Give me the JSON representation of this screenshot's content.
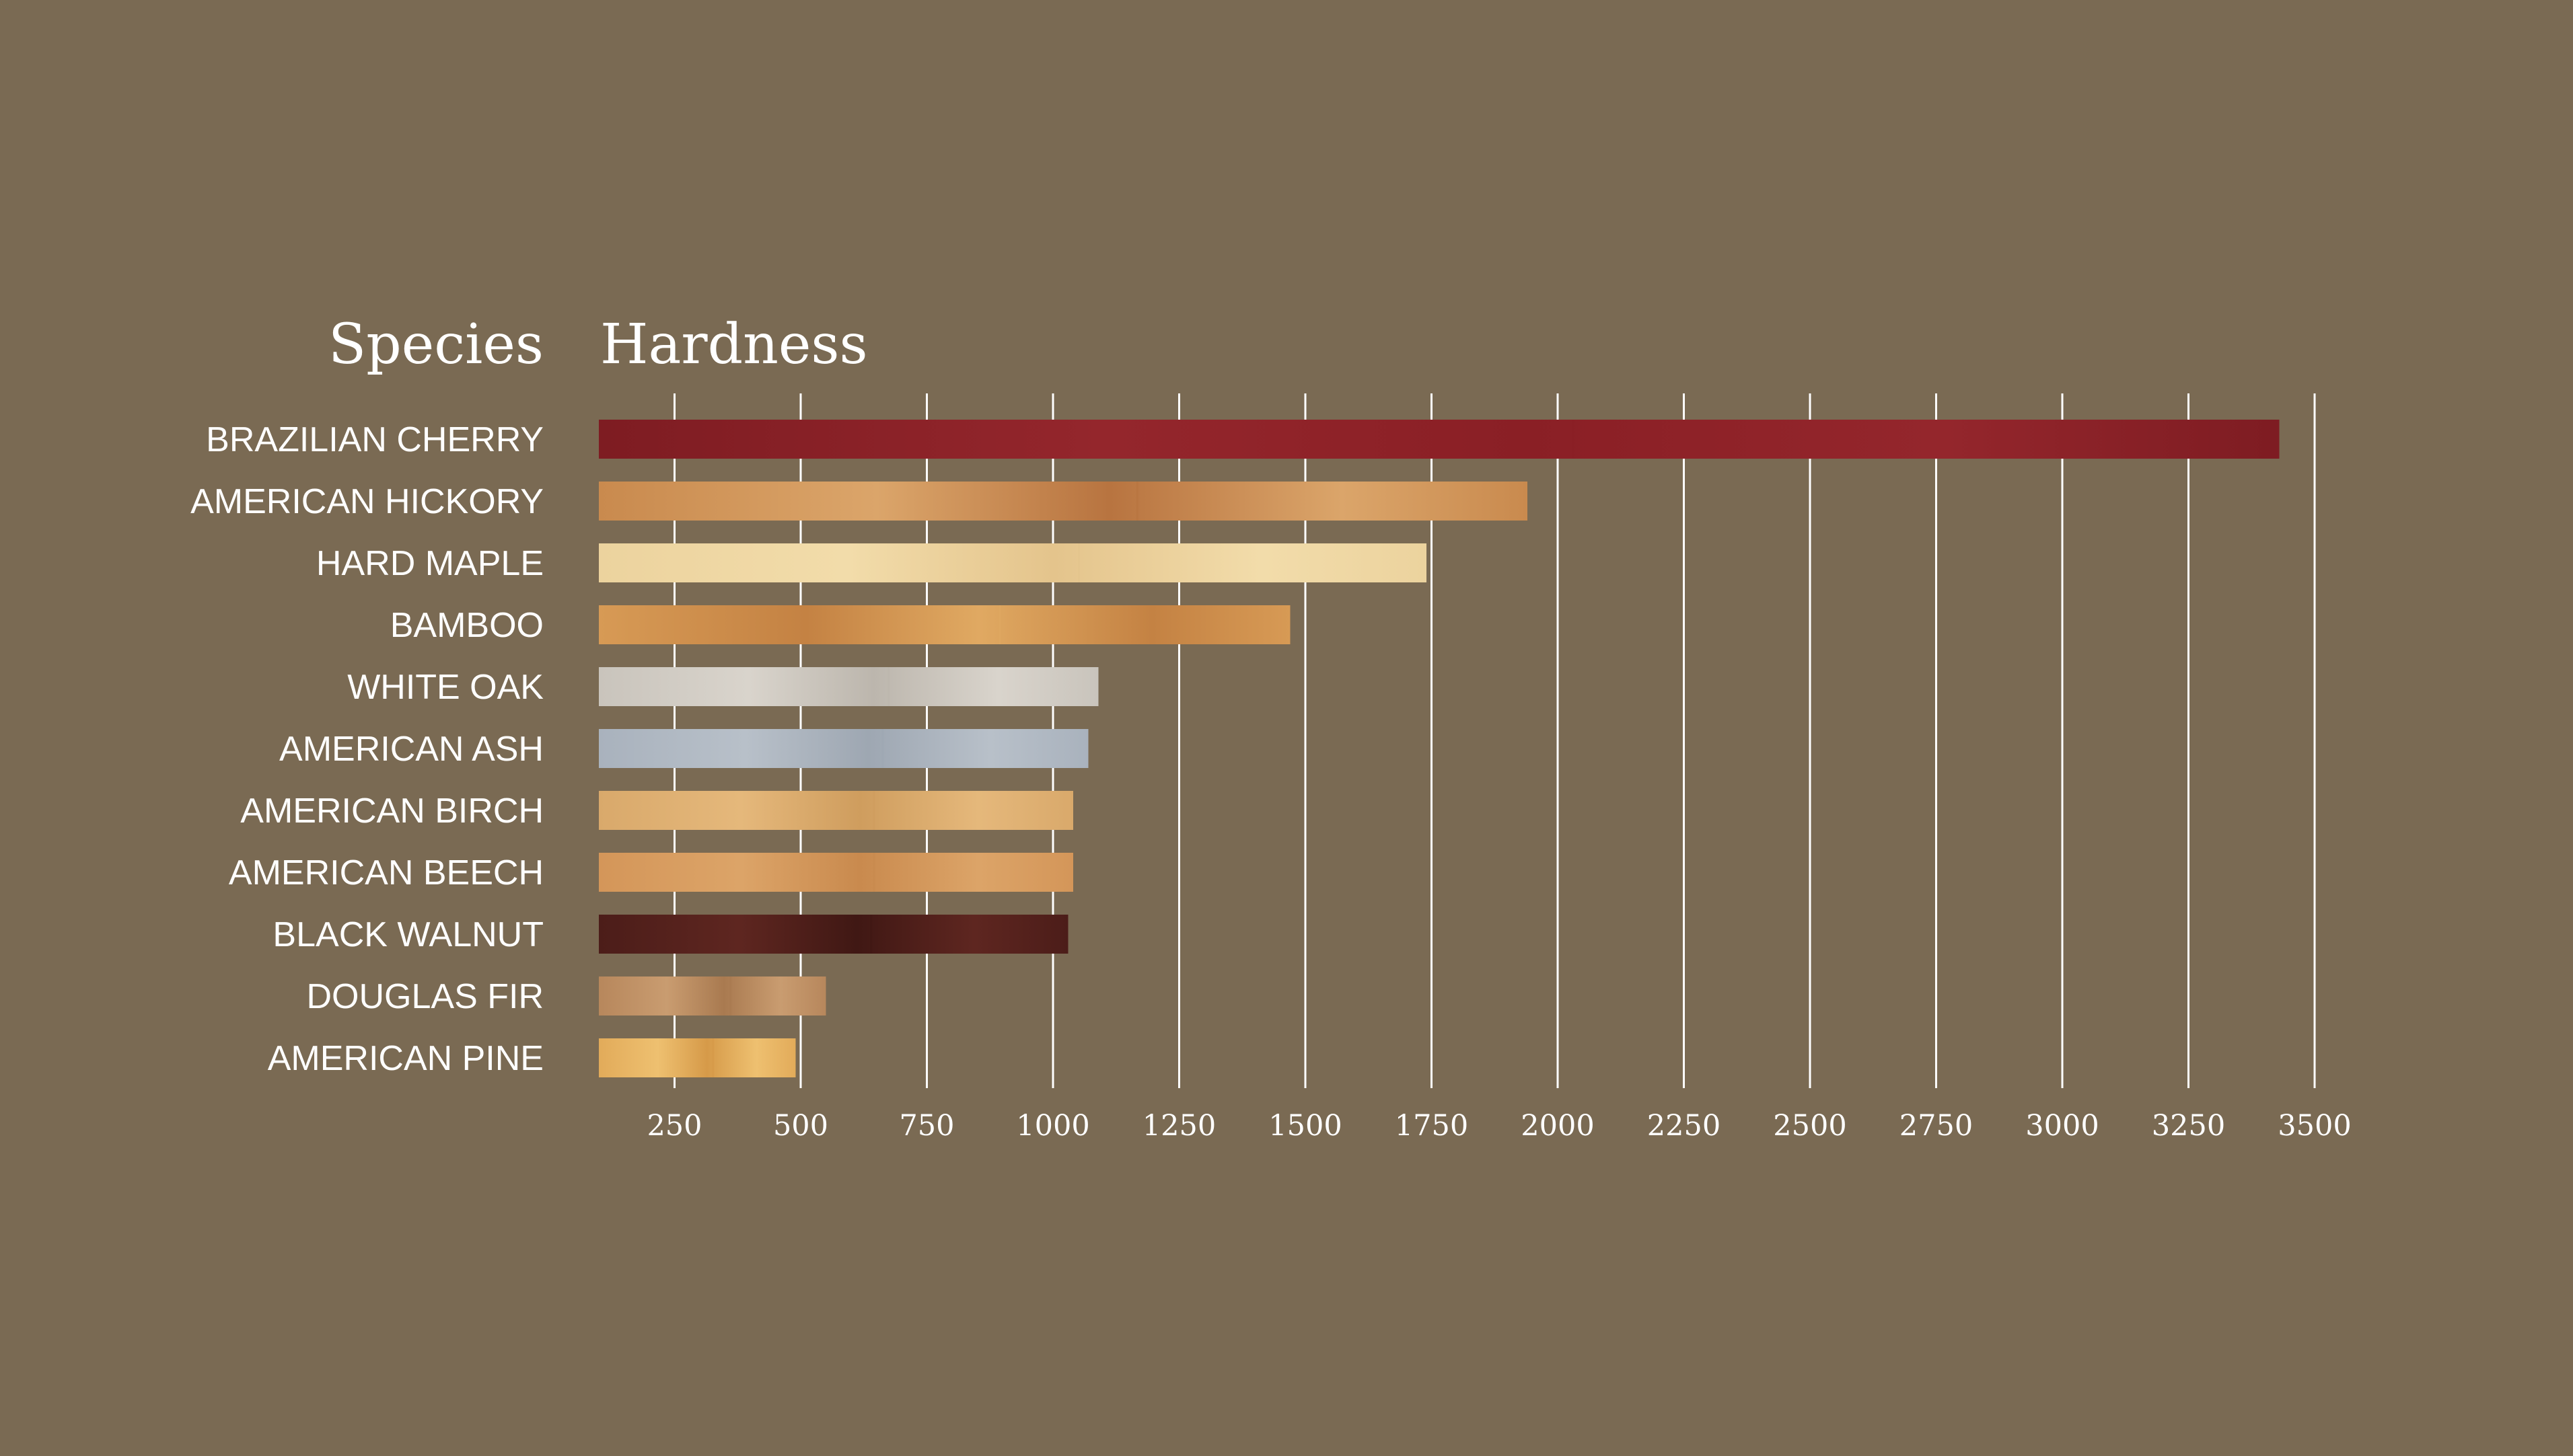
{
  "chart_data": {
    "type": "bar",
    "orientation": "horizontal",
    "headers": {
      "category": "Species",
      "value": "Hardness"
    },
    "categories": [
      "BRAZILIAN CHERRY",
      "AMERICAN HICKORY",
      "HARD MAPLE",
      "BAMBOO",
      "WHITE OAK",
      "AMERICAN ASH",
      "AMERICAN BIRCH",
      "AMERICAN BEECH",
      "BLACK WALNUT",
      "DOUGLAS FIR",
      "AMERICAN PINE"
    ],
    "values": [
      3430,
      1940,
      1740,
      1470,
      1090,
      1070,
      1040,
      1040,
      1030,
      550,
      490
    ],
    "xlim": [
      100,
      3600
    ],
    "ticks": [
      250,
      500,
      750,
      1000,
      1250,
      1500,
      1750,
      2000,
      2250,
      2500,
      2750,
      3000,
      3250,
      3500
    ],
    "tick_labels": [
      "250",
      "500",
      "750",
      "1000",
      "1250",
      "1500",
      "1750",
      "2000",
      "2250",
      "2500",
      "2750",
      "3000",
      "3250",
      "3500"
    ],
    "grid": true,
    "bar_colors": [
      [
        "#7e1c22",
        "#94262c",
        "#8a1f25"
      ],
      [
        "#c98a4e",
        "#dba56a",
        "#b87440"
      ],
      [
        "#ecd39e",
        "#f2dcaa",
        "#e4c48c"
      ],
      [
        "#d79a55",
        "#c48243",
        "#e0a962"
      ],
      [
        "#c9c4bc",
        "#d9d4cc",
        "#bcb6ad"
      ],
      [
        "#a9b2bd",
        "#b8c0c9",
        "#9ea7b2"
      ],
      [
        "#d9a96b",
        "#e5b87b",
        "#cf9d5e"
      ],
      [
        "#d49659",
        "#dca468",
        "#c98a4e"
      ],
      [
        "#4c1d19",
        "#5e2620",
        "#401814"
      ],
      [
        "#b7875c",
        "#c99c70",
        "#a97a50"
      ],
      [
        "#e2ab5a",
        "#eec070",
        "#d69a49"
      ]
    ]
  }
}
